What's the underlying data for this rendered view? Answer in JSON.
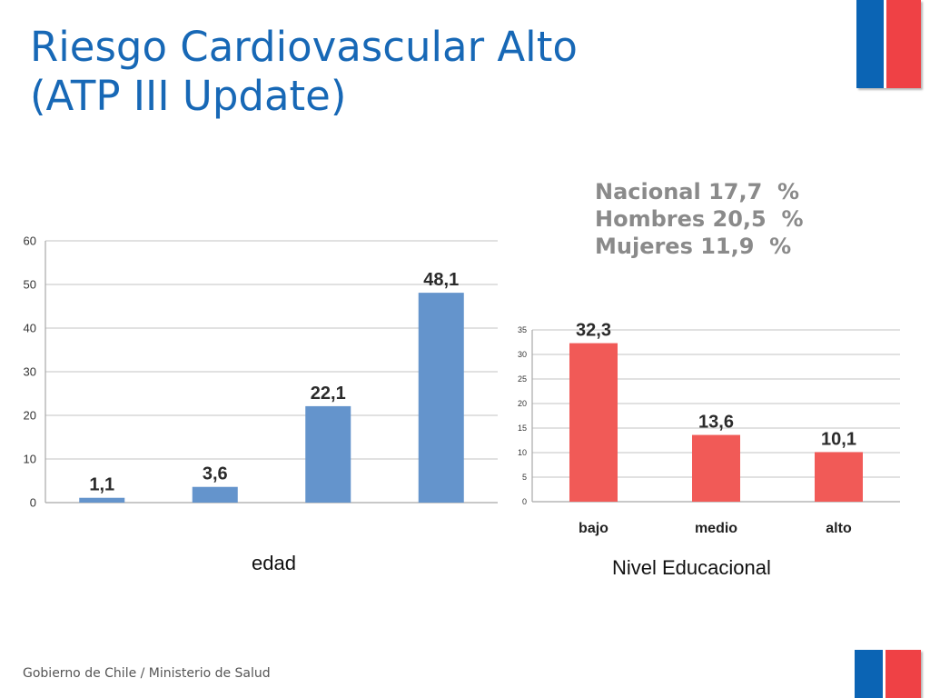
{
  "title": {
    "line1": "Riesgo Cardiovascular Alto",
    "line2": "(ATP III Update)"
  },
  "stats": [
    "Nacional 17,7  %",
    "Hombres 20,5  %",
    "Mujeres 11,9  %"
  ],
  "footer": "Gobierno de Chile / Ministerio de Salud",
  "colors": {
    "title": "#1768b6",
    "edad_bars": "#6494cc",
    "nivel_bars": "#f15a57",
    "flag_blue": "#0b64b4",
    "flag_red": "#ef4145"
  },
  "chart_data": [
    {
      "type": "bar",
      "caption": "edad",
      "categories": [
        "",
        "",
        "",
        ""
      ],
      "values": [
        1.1,
        3.6,
        22.1,
        48.1
      ],
      "value_labels": [
        "1,1",
        "3,6",
        "22,1",
        "48,1"
      ],
      "ylim": [
        0,
        60
      ],
      "yticks": [
        0,
        10,
        20,
        30,
        40,
        50,
        60
      ],
      "grid": true
    },
    {
      "type": "bar",
      "caption": "Nivel Educacional",
      "categories": [
        "bajo",
        "medio",
        "alto"
      ],
      "values": [
        32.3,
        13.6,
        10.1
      ],
      "value_labels": [
        "32,3",
        "13,6",
        "10,1"
      ],
      "ylim": [
        0,
        35
      ],
      "yticks": [
        0,
        5,
        10,
        15,
        20,
        25,
        30,
        35
      ],
      "grid": true
    }
  ]
}
